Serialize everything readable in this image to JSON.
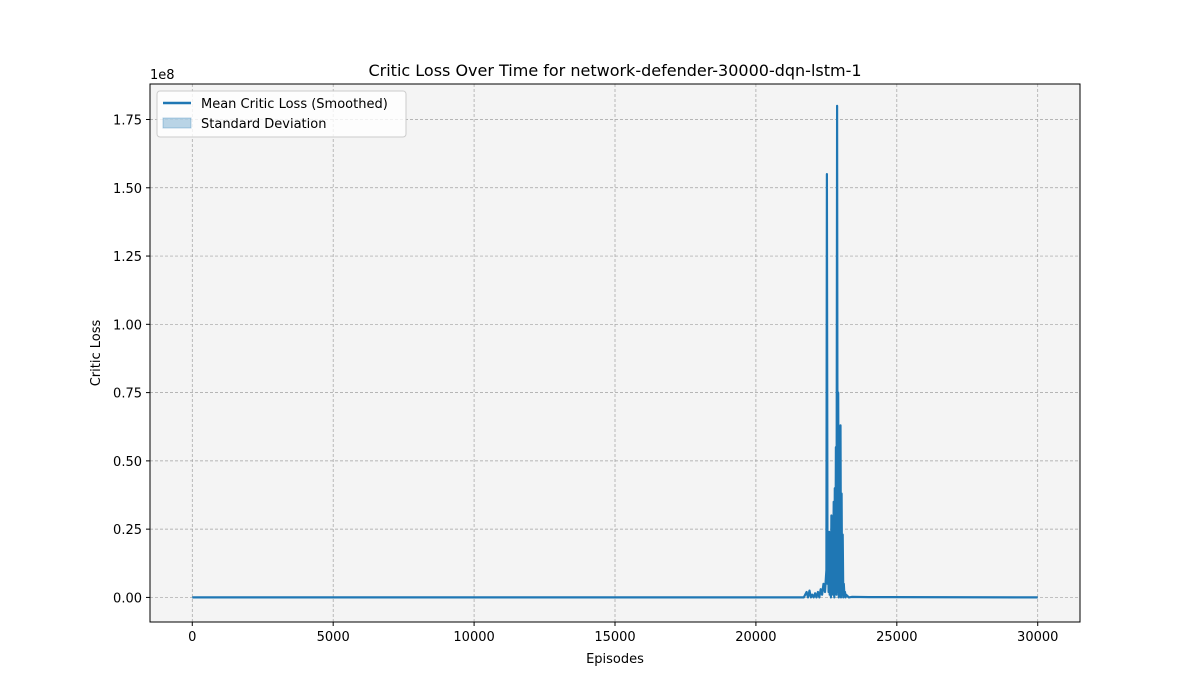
{
  "chart_data": {
    "type": "line",
    "title": "Critic Loss Over Time for network-defender-30000-dqn-lstm-1",
    "xlabel": "Episodes",
    "ylabel": "Critic Loss",
    "y_scale_label": "1e8",
    "xlim": [
      -1500,
      31500
    ],
    "ylim": [
      -0.09,
      1.88
    ],
    "y_multiplier": 100000000,
    "x_ticks": [
      0,
      5000,
      10000,
      15000,
      20000,
      25000,
      30000
    ],
    "x_tick_labels": [
      "0",
      "5000",
      "10000",
      "15000",
      "20000",
      "25000",
      "30000"
    ],
    "y_ticks": [
      0.0,
      0.25,
      0.5,
      0.75,
      1.0,
      1.25,
      1.5,
      1.75
    ],
    "y_tick_labels": [
      "0.00",
      "0.25",
      "0.50",
      "0.75",
      "1.00",
      "1.25",
      "1.50",
      "1.75"
    ],
    "grid": true,
    "legend_position": "top-left",
    "series": [
      {
        "name": "Mean Critic Loss (Smoothed)",
        "color": "#1f77b4",
        "x": [
          0,
          21700,
          21800,
          21850,
          21900,
          21950,
          22000,
          22050,
          22100,
          22150,
          22200,
          22250,
          22300,
          22350,
          22400,
          22450,
          22500,
          22520,
          22540,
          22560,
          22580,
          22600,
          22620,
          22640,
          22660,
          22680,
          22700,
          22720,
          22740,
          22760,
          22780,
          22800,
          22820,
          22840,
          22860,
          22880,
          22900,
          22920,
          22940,
          22960,
          22980,
          23000,
          23020,
          23040,
          23060,
          23080,
          23100,
          23120,
          23140,
          23160,
          23180,
          23200,
          23250,
          23300,
          23400,
          24000,
          30000
        ],
        "values": [
          0.0,
          0.0,
          0.02,
          0.0,
          0.025,
          0.0,
          0.01,
          0.0,
          0.015,
          0.0,
          0.02,
          0.0,
          0.03,
          0.01,
          0.05,
          0.02,
          0.1,
          1.55,
          0.05,
          0.2,
          0.02,
          0.24,
          0.01,
          0.18,
          0.0,
          0.3,
          0.02,
          0.28,
          0.01,
          0.35,
          0.0,
          0.4,
          0.02,
          0.55,
          0.01,
          1.8,
          0.02,
          0.75,
          0.0,
          0.5,
          0.01,
          0.63,
          0.0,
          0.38,
          0.01,
          0.23,
          0.0,
          0.05,
          0.01,
          0.02,
          0.0,
          0.01,
          0.005,
          0.0,
          0.002,
          0.001,
          0.0
        ]
      },
      {
        "name": "Standard Deviation",
        "color": "#1f77b4"
      }
    ]
  }
}
